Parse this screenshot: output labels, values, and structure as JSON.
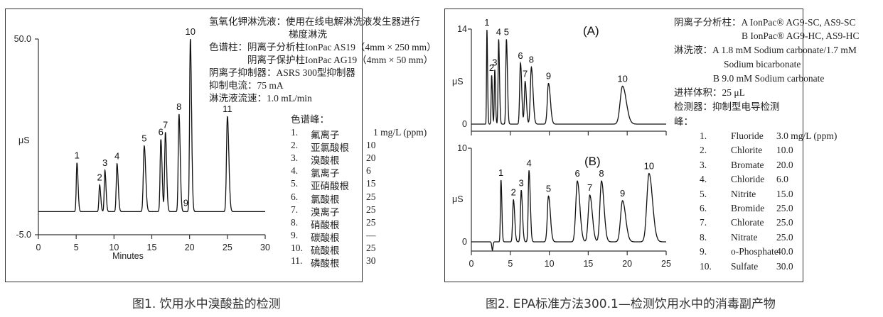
{
  "figure1": {
    "caption": "图1. 饮用水中溴酸盐的检测",
    "conditions": {
      "eluent_label": "氢氧化钾淋洗液：",
      "eluent_value": "使用在线电解淋洗液发生器进行",
      "eluent_value_cont": "梯度淋洗",
      "column_label": "色谱柱：",
      "column_value": "阴离子分析柱IonPac AS19（4mm × 250 mm）",
      "guard_value": "阴离子保护柱IonPac AG19（4mm × 50 mm）",
      "suppressor": "阴离子抑制器：ASRS 300型抑制器",
      "current": "抑制电流：75 mA",
      "flow": "淋洗液流速：1.0 mL/min"
    },
    "peaks_title": "色谱峰：",
    "peaks": [
      {
        "num": "1.",
        "name": "氟离子",
        "conc": "1 mg/L (ppm)"
      },
      {
        "num": "2.",
        "name": "亚氯酸根",
        "conc": "10"
      },
      {
        "num": "3.",
        "name": "溴酸根",
        "conc": "20"
      },
      {
        "num": "4.",
        "name": "氯离子",
        "conc": "6"
      },
      {
        "num": "5.",
        "name": "亚硝酸根",
        "conc": "15"
      },
      {
        "num": "6.",
        "name": "氯酸根",
        "conc": "25"
      },
      {
        "num": "7.",
        "name": "溴离子",
        "conc": "25"
      },
      {
        "num": "8.",
        "name": "硝酸根",
        "conc": "25"
      },
      {
        "num": "9.",
        "name": "碳酸根",
        "conc": "—"
      },
      {
        "num": "10.",
        "name": "硫酸根",
        "conc": "25"
      },
      {
        "num": "11.",
        "name": "磷酸根",
        "conc": "30"
      }
    ]
  },
  "figure2": {
    "caption": "图2. EPA标准方法300.1—检测饮用水中的消毒副产物",
    "conditions": {
      "column_label": "阴离子分析柱：",
      "column_a": "A IonPac® AG9-SC, AS9-SC",
      "column_b": "B IonPac® AG9-HC, AS9-HC",
      "eluent_label": "淋洗液：",
      "eluent_a": "A  1.8 mM Sodium carbonate/1.7 mM",
      "eluent_a_cont": "Sodium bicarbonate",
      "eluent_b": "B  9.0 mM Sodium carbonate",
      "injection": "进样体积：25 μL",
      "detector": "检测器：抑制型电导检测",
      "peaks_title": "峰："
    },
    "peaks": [
      {
        "num": "1.",
        "name": "Fluoride",
        "conc": "3.0  mg/L (ppm)"
      },
      {
        "num": "2.",
        "name": "Chlorite",
        "conc": "10.0"
      },
      {
        "num": "3.",
        "name": "Bromate",
        "conc": "20.0"
      },
      {
        "num": "4.",
        "name": "Chloride",
        "conc": "6.0"
      },
      {
        "num": "5.",
        "name": "Nitrite",
        "conc": "15.0"
      },
      {
        "num": "6.",
        "name": "Bromide",
        "conc": "25.0"
      },
      {
        "num": "7.",
        "name": "Chlorate",
        "conc": "25.0"
      },
      {
        "num": "8.",
        "name": "Nitrate",
        "conc": "25.0"
      },
      {
        "num": "9.",
        "name": "o-Phosphate",
        "conc": "40.0"
      },
      {
        "num": "10.",
        "name": "Sulfate",
        "conc": "30.0"
      }
    ]
  },
  "chart_data": [
    {
      "type": "line",
      "title": "图1. 饮用水中溴酸盐的检测",
      "xlabel": "Minutes",
      "ylabel": "μS",
      "xlim": [
        0,
        30
      ],
      "ylim": [
        -5.0,
        50.0
      ],
      "xticks": [
        0,
        5,
        10,
        15,
        20,
        25,
        30
      ],
      "yticks": [
        "-5.0",
        "50.0"
      ],
      "baseline": 1.5,
      "grid": false,
      "series": [
        {
          "name": "chromatogram",
          "peaks": [
            {
              "label": "1",
              "time": 5.1,
              "height": 15.2,
              "width": 0.09
            },
            {
              "label": "2",
              "time": 8.1,
              "height": 9.0,
              "width": 0.09
            },
            {
              "label": "3",
              "time": 8.8,
              "height": 13.1,
              "width": 0.09
            },
            {
              "label": "4",
              "time": 10.4,
              "height": 15.0,
              "width": 0.1
            },
            {
              "label": "5",
              "time": 14.0,
              "height": 20.0,
              "width": 0.12
            },
            {
              "label": "6",
              "time": 16.2,
              "height": 21.8,
              "width": 0.1
            },
            {
              "label": "7",
              "time": 16.8,
              "height": 23.8,
              "width": 0.1
            },
            {
              "label": "8",
              "time": 18.6,
              "height": 28.9,
              "width": 0.1
            },
            {
              "label": "9",
              "time": 19.5,
              "height": 0.1,
              "width": 0.1
            },
            {
              "label": "10",
              "time": 20.1,
              "height": 50.0,
              "width": 0.1
            },
            {
              "label": "11",
              "time": 25.0,
              "height": 28.3,
              "width": 0.12
            }
          ]
        }
      ]
    },
    {
      "type": "line",
      "title": "(A)",
      "xlabel": "",
      "ylabel": "μS",
      "xlim": [
        0,
        25
      ],
      "ylim": [
        -1,
        14
      ],
      "xticks": [
        0,
        5,
        10,
        15,
        20,
        25
      ],
      "yticks": [
        "0",
        "14"
      ],
      "series": [
        {
          "name": "A",
          "peaks": [
            {
              "label": "1",
              "time": 2.0,
              "height": 13.9,
              "width": 0.05
            },
            {
              "label": "2",
              "time": 2.6,
              "height": 7.2,
              "width": 0.06
            },
            {
              "label": "3",
              "time": 3.0,
              "height": 8.0,
              "width": 0.06
            },
            {
              "label": "4",
              "time": 3.5,
              "height": 12.5,
              "width": 0.07
            },
            {
              "label": "5",
              "time": 4.5,
              "height": 12.5,
              "width": 0.08
            },
            {
              "label": "6",
              "time": 6.3,
              "height": 9.0,
              "width": 0.1
            },
            {
              "label": "7",
              "time": 6.9,
              "height": 6.3,
              "width": 0.1
            },
            {
              "label": "8",
              "time": 7.7,
              "height": 8.4,
              "width": 0.13
            },
            {
              "label": "9",
              "time": 9.9,
              "height": 6.0,
              "width": 0.15
            },
            {
              "label": "10",
              "time": 19.4,
              "height": 5.6,
              "width": 0.3
            }
          ]
        }
      ]
    },
    {
      "type": "line",
      "title": "(B)",
      "xlabel": "",
      "ylabel": "μS",
      "xlim": [
        0,
        25
      ],
      "ylim": [
        -1.2,
        10
      ],
      "xticks": [
        0,
        5,
        10,
        15,
        20,
        25
      ],
      "yticks": [
        "0",
        "10"
      ],
      "series": [
        {
          "name": "B",
          "dip": {
            "time": 2.7,
            "depth": -0.9
          },
          "peaks": [
            {
              "label": "1",
              "time": 3.8,
              "height": 6.6,
              "width": 0.07
            },
            {
              "label": "2",
              "time": 5.4,
              "height": 4.5,
              "width": 0.1
            },
            {
              "label": "3",
              "time": 6.4,
              "height": 5.5,
              "width": 0.1
            },
            {
              "label": "4",
              "time": 7.4,
              "height": 7.6,
              "width": 0.1
            },
            {
              "label": "5",
              "time": 9.9,
              "height": 4.9,
              "width": 0.15
            },
            {
              "label": "6",
              "time": 13.6,
              "height": 6.5,
              "width": 0.2
            },
            {
              "label": "7",
              "time": 15.2,
              "height": 5.0,
              "width": 0.2
            },
            {
              "label": "8",
              "time": 16.7,
              "height": 6.5,
              "width": 0.2
            },
            {
              "label": "9",
              "time": 19.4,
              "height": 4.4,
              "width": 0.25
            },
            {
              "label": "10",
              "time": 22.8,
              "height": 7.3,
              "width": 0.28
            }
          ]
        }
      ]
    }
  ]
}
